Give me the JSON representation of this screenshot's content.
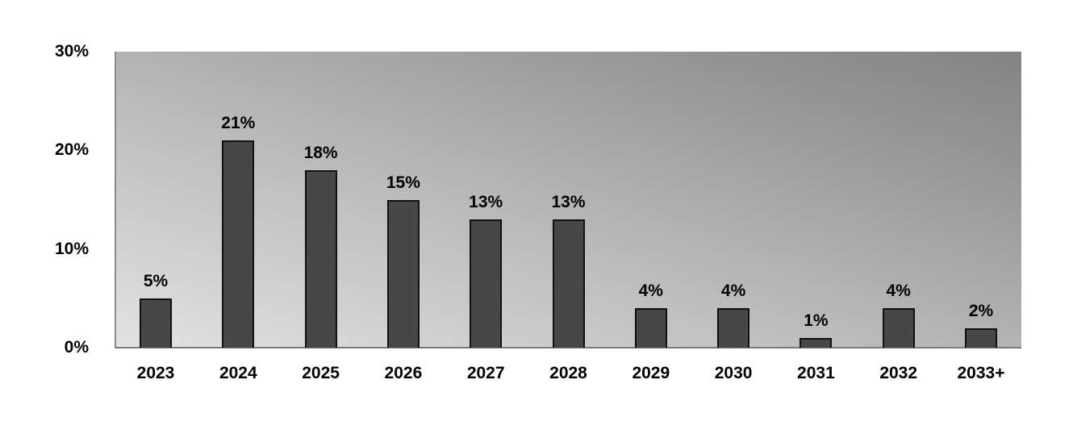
{
  "chart_data": {
    "type": "bar",
    "title": "",
    "xlabel": "",
    "ylabel": "",
    "categories": [
      "2023",
      "2024",
      "2025",
      "2026",
      "2027",
      "2028",
      "2029",
      "2030",
      "2031",
      "2032",
      "2033+"
    ],
    "values": [
      5,
      21,
      18,
      15,
      13,
      13,
      4,
      4,
      1,
      4,
      2
    ],
    "value_labels": [
      "5%",
      "21%",
      "18%",
      "15%",
      "13%",
      "13%",
      "4%",
      "4%",
      "1%",
      "4%",
      "2%"
    ],
    "ylim": [
      0,
      30
    ],
    "yticks": [
      0,
      10,
      20,
      30
    ],
    "ytick_labels": [
      "0%",
      "10%",
      "20%",
      "30%"
    ],
    "grid": false,
    "legend": null,
    "colors": {
      "bar_fill": "#474747",
      "bar_border": "#111111",
      "plot_bg_light": "#e2e2e2",
      "plot_bg_dark": "#838383"
    }
  }
}
